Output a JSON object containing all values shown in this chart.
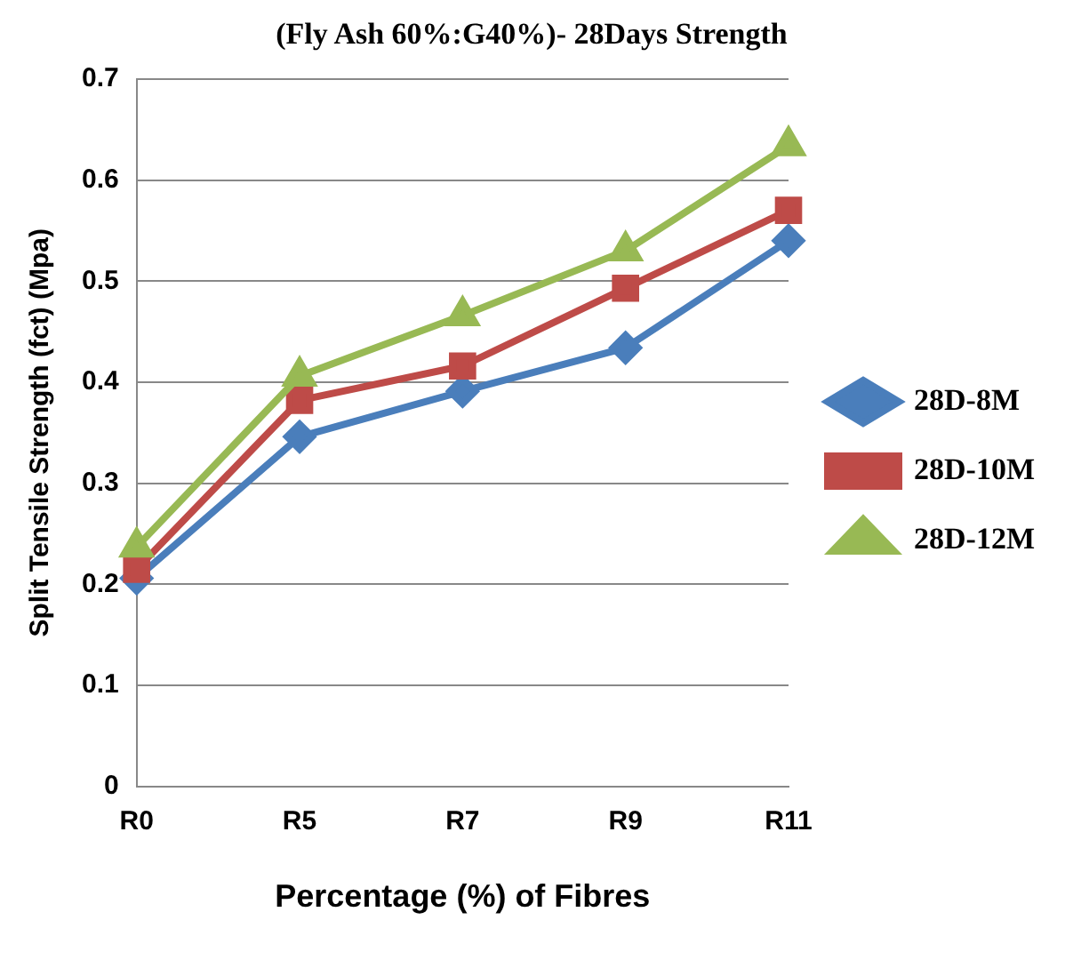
{
  "chart_data": {
    "type": "line",
    "title": "(Fly Ash 60%:G40%)- 28Days Strength",
    "xlabel": "Percentage (%) of Fibres",
    "ylabel": "Split Tensile Strength (fct) (Mpa)",
    "categories": [
      "R0",
      "R5",
      "R7",
      "R9",
      "R11"
    ],
    "series": [
      {
        "name": "28D-8M",
        "color": "#4a7ebb",
        "marker": "diamond",
        "values": [
          0.206,
          0.346,
          0.391,
          0.434,
          0.54
        ]
      },
      {
        "name": "28D-10M",
        "color": "#be4b48",
        "marker": "square",
        "values": [
          0.215,
          0.382,
          0.416,
          0.493,
          0.57
        ]
      },
      {
        "name": "28D-12M",
        "color": "#98b954",
        "marker": "triangle",
        "values": [
          0.237,
          0.406,
          0.466,
          0.53,
          0.634
        ]
      }
    ],
    "ylim": [
      0,
      0.7
    ],
    "yticks": [
      0,
      0.1,
      0.2,
      0.3,
      0.4,
      0.5,
      0.6,
      0.7
    ],
    "grid": "y",
    "legend": "right",
    "line_style": "solid"
  }
}
